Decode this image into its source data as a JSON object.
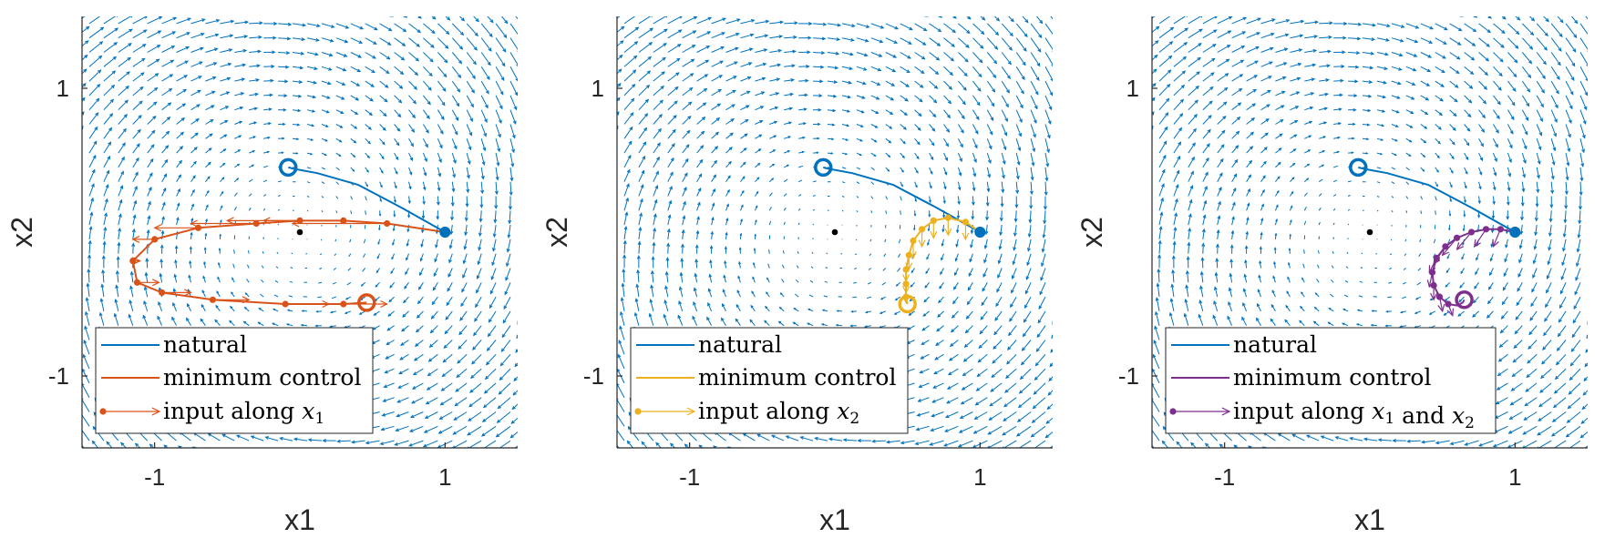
{
  "chart_data": [
    {
      "type": "line",
      "xlabel": "x1",
      "ylabel": "x2",
      "xlim": [
        -1.5,
        1.5
      ],
      "ylim": [
        -1.5,
        1.5
      ],
      "xticks": [
        -1,
        1
      ],
      "yticks": [
        -1,
        1
      ],
      "equilibrium": [
        0,
        0
      ],
      "series": [
        {
          "name": "natural",
          "color": "#0072BD",
          "points": [
            [
              1.0,
              0.0
            ],
            [
              0.7,
              0.17
            ],
            [
              0.4,
              0.33
            ],
            [
              0.12,
              0.41
            ],
            [
              -0.04,
              0.44
            ],
            [
              -0.08,
              0.45
            ]
          ],
          "start": [
            1.0,
            0.0
          ],
          "end": [
            -0.08,
            0.45
          ]
        },
        {
          "name": "minimum control",
          "color": "#D95319",
          "points": [
            [
              1.0,
              0.0
            ],
            [
              0.6,
              0.06
            ],
            [
              0.3,
              0.08
            ],
            [
              0.0,
              0.08
            ],
            [
              -0.3,
              0.06
            ],
            [
              -0.7,
              0.03
            ],
            [
              -1.0,
              -0.05
            ],
            [
              -1.15,
              -0.2
            ],
            [
              -1.12,
              -0.35
            ],
            [
              -0.95,
              -0.42
            ],
            [
              -0.6,
              -0.47
            ],
            [
              -0.1,
              -0.5
            ],
            [
              0.3,
              -0.5
            ],
            [
              0.46,
              -0.49
            ]
          ],
          "start": [
            1.0,
            0.0
          ],
          "end": [
            0.46,
            -0.49
          ]
        },
        {
          "name": "input along x₁",
          "color": "#D95319",
          "markers": [
            [
              0.6,
              0.06
            ],
            [
              0.3,
              0.08
            ],
            [
              0.0,
              0.08
            ],
            [
              -0.3,
              0.06
            ],
            [
              -0.7,
              0.03
            ],
            [
              -1.0,
              -0.05
            ],
            [
              -1.15,
              -0.2
            ],
            [
              -1.12,
              -0.35
            ],
            [
              -0.95,
              -0.42
            ],
            [
              -0.6,
              -0.47
            ],
            [
              -0.1,
              -0.5
            ],
            [
              0.3,
              -0.5
            ]
          ],
          "vectors": [
            [
              -0.65,
              0.0
            ],
            [
              -0.55,
              0.0
            ],
            [
              -0.5,
              0.0
            ],
            [
              -0.45,
              0.0
            ],
            [
              -0.3,
              0.0
            ],
            [
              -0.15,
              0.0
            ],
            [
              0.05,
              0.0
            ],
            [
              0.15,
              0.0
            ],
            [
              0.2,
              0.0
            ],
            [
              0.25,
              0.0
            ],
            [
              0.3,
              0.0
            ],
            [
              0.3,
              0.0
            ]
          ]
        }
      ],
      "legend": {
        "location": "bottom-left",
        "entries": [
          "natural",
          "minimum control",
          "input along x₁"
        ]
      }
    },
    {
      "type": "line",
      "xlabel": "x1",
      "ylabel": "x2",
      "xlim": [
        -1.5,
        1.5
      ],
      "ylim": [
        -1.5,
        1.5
      ],
      "xticks": [
        -1,
        1
      ],
      "yticks": [
        -1,
        1
      ],
      "equilibrium": [
        0,
        0
      ],
      "series": [
        {
          "name": "natural",
          "color": "#0072BD",
          "points": [
            [
              1.0,
              0.0
            ],
            [
              0.7,
              0.17
            ],
            [
              0.4,
              0.33
            ],
            [
              0.12,
              0.41
            ],
            [
              -0.04,
              0.44
            ],
            [
              -0.08,
              0.45
            ]
          ],
          "start": [
            1.0,
            0.0
          ],
          "end": [
            -0.08,
            0.45
          ]
        },
        {
          "name": "minimum control",
          "color": "#EDB120",
          "points": [
            [
              1.0,
              0.0
            ],
            [
              0.9,
              0.07
            ],
            [
              0.78,
              0.1
            ],
            [
              0.68,
              0.08
            ],
            [
              0.6,
              0.02
            ],
            [
              0.54,
              -0.06
            ],
            [
              0.51,
              -0.16
            ],
            [
              0.49,
              -0.26
            ],
            [
              0.49,
              -0.36
            ],
            [
              0.49,
              -0.45
            ],
            [
              0.5,
              -0.5
            ]
          ],
          "start": [
            1.0,
            0.0
          ],
          "end": [
            0.5,
            -0.5
          ]
        },
        {
          "name": "input along x₂",
          "color": "#EDB120",
          "markers": [
            [
              0.9,
              0.07
            ],
            [
              0.78,
              0.1
            ],
            [
              0.68,
              0.08
            ],
            [
              0.6,
              0.02
            ],
            [
              0.54,
              -0.06
            ],
            [
              0.51,
              -0.16
            ],
            [
              0.49,
              -0.26
            ],
            [
              0.49,
              -0.36
            ],
            [
              0.49,
              -0.45
            ]
          ],
          "vectors": [
            [
              0.0,
              -0.12
            ],
            [
              0.0,
              -0.12
            ],
            [
              0.0,
              -0.12
            ],
            [
              0.0,
              -0.12
            ],
            [
              0.0,
              -0.12
            ],
            [
              0.0,
              -0.1
            ],
            [
              0.0,
              -0.08
            ],
            [
              0.0,
              -0.06
            ],
            [
              0.0,
              -0.04
            ]
          ]
        }
      ],
      "legend": {
        "location": "bottom-left",
        "entries": [
          "natural",
          "minimum control",
          "input along x₂"
        ]
      }
    },
    {
      "type": "line",
      "xlabel": "x1",
      "ylabel": "x2",
      "xlim": [
        -1.5,
        1.5
      ],
      "ylim": [
        -1.5,
        1.5
      ],
      "xticks": [
        -1,
        1
      ],
      "yticks": [
        -1,
        1
      ],
      "equilibrium": [
        0,
        0
      ],
      "series": [
        {
          "name": "natural",
          "color": "#0072BD",
          "points": [
            [
              1.0,
              0.0
            ],
            [
              0.7,
              0.17
            ],
            [
              0.4,
              0.33
            ],
            [
              0.12,
              0.41
            ],
            [
              -0.04,
              0.44
            ],
            [
              -0.08,
              0.45
            ]
          ],
          "start": [
            1.0,
            0.0
          ],
          "end": [
            -0.08,
            0.45
          ]
        },
        {
          "name": "minimum control",
          "color": "#7E2F8E",
          "points": [
            [
              1.0,
              0.0
            ],
            [
              0.9,
              0.02
            ],
            [
              0.8,
              0.02
            ],
            [
              0.7,
              0.0
            ],
            [
              0.6,
              -0.04
            ],
            [
              0.52,
              -0.1
            ],
            [
              0.46,
              -0.18
            ],
            [
              0.43,
              -0.28
            ],
            [
              0.44,
              -0.37
            ],
            [
              0.48,
              -0.45
            ],
            [
              0.54,
              -0.5
            ],
            [
              0.6,
              -0.51
            ],
            [
              0.64,
              -0.49
            ],
            [
              0.65,
              -0.47
            ]
          ],
          "start": [
            1.0,
            0.0
          ],
          "end": [
            0.65,
            -0.47
          ]
        },
        {
          "name": "input along x₁ and x₂",
          "color": "#7E2F8E",
          "markers": [
            [
              0.9,
              0.02
            ],
            [
              0.8,
              0.02
            ],
            [
              0.7,
              0.0
            ],
            [
              0.6,
              -0.04
            ],
            [
              0.52,
              -0.1
            ],
            [
              0.46,
              -0.18
            ],
            [
              0.43,
              -0.28
            ],
            [
              0.44,
              -0.37
            ],
            [
              0.48,
              -0.45
            ],
            [
              0.54,
              -0.5
            ]
          ],
          "vectors": [
            [
              -0.05,
              -0.12
            ],
            [
              -0.08,
              -0.12
            ],
            [
              -0.1,
              -0.12
            ],
            [
              -0.1,
              -0.12
            ],
            [
              -0.08,
              -0.12
            ],
            [
              -0.05,
              -0.1
            ],
            [
              -0.02,
              -0.1
            ],
            [
              0.0,
              -0.1
            ],
            [
              0.02,
              -0.1
            ],
            [
              0.03,
              -0.08
            ]
          ]
        }
      ],
      "legend": {
        "location": "bottom-left",
        "entries": [
          "natural",
          "minimum control",
          "input along x₁ and x₂"
        ]
      }
    }
  ],
  "quiver_color": "#0072BD"
}
